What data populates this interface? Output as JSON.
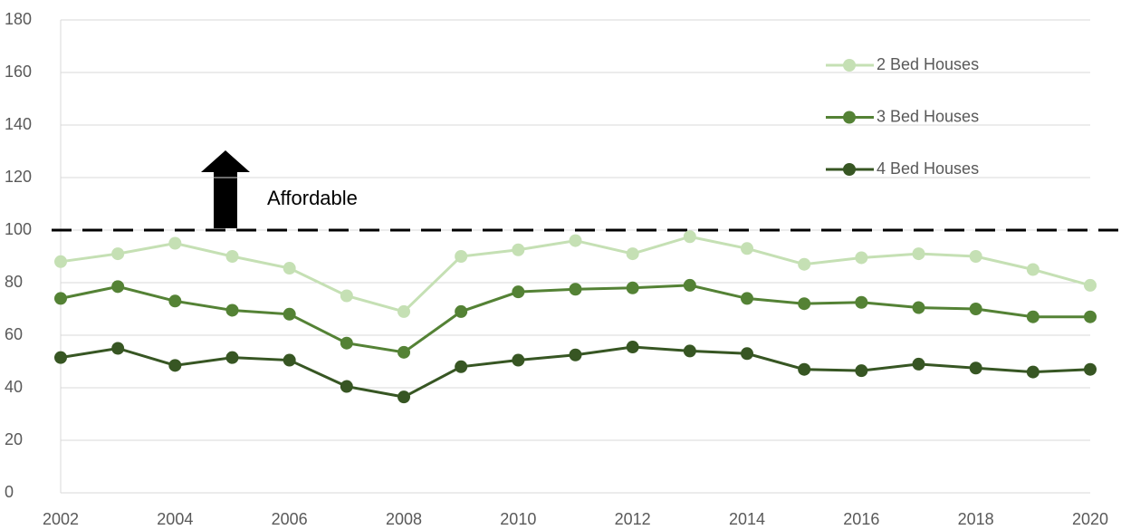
{
  "chart_data": {
    "type": "line",
    "x": [
      2002,
      2003,
      2004,
      2005,
      2006,
      2007,
      2008,
      2009,
      2010,
      2011,
      2012,
      2013,
      2014,
      2015,
      2016,
      2017,
      2018,
      2019,
      2020
    ],
    "series": [
      {
        "name": "2 Bed Houses",
        "color": "#c5e0b4",
        "values": [
          88,
          91,
          95,
          90,
          85.5,
          75,
          69,
          90,
          92.5,
          96,
          91,
          97.5,
          93,
          87,
          89.5,
          91,
          90,
          85,
          79
        ]
      },
      {
        "name": "3 Bed Houses",
        "color": "#548235",
        "values": [
          74,
          78.5,
          73,
          69.5,
          68,
          57,
          53.5,
          69,
          76.5,
          77.5,
          78,
          79,
          74,
          72,
          72.5,
          70.5,
          70,
          67,
          67
        ]
      },
      {
        "name": "4 Bed Houses",
        "color": "#375623",
        "values": [
          51.5,
          55,
          48.5,
          51.5,
          50.5,
          40.5,
          36.5,
          48,
          50.5,
          52.5,
          55.5,
          54,
          53,
          47,
          46.5,
          49,
          47.5,
          46,
          47
        ]
      }
    ],
    "xlim": [
      2002,
      2020
    ],
    "xticks": [
      2002,
      2004,
      2006,
      2008,
      2010,
      2012,
      2014,
      2016,
      2018,
      2020
    ],
    "ylim": [
      0,
      180
    ],
    "yticks": [
      0,
      20,
      40,
      60,
      80,
      100,
      120,
      140,
      160,
      180
    ],
    "grid": true,
    "legend": "right",
    "reference_line": 100,
    "annotation": "Affordable"
  }
}
